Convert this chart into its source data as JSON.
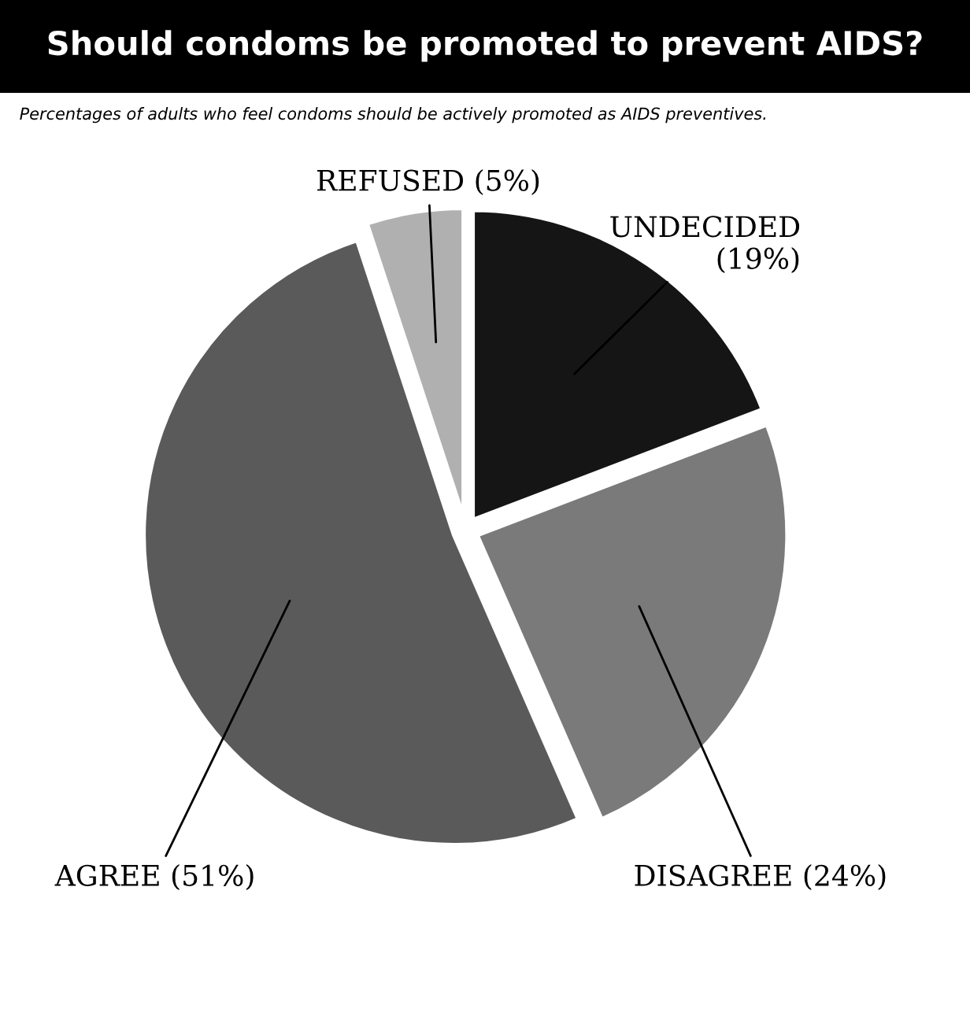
{
  "chart_data": {
    "type": "pie",
    "title": "Should condoms be promoted to prevent AIDS?",
    "categories": [
      "UNDECIDED",
      "DISAGREE",
      "AGREE",
      "REFUSED"
    ],
    "values": [
      19,
      24,
      51,
      5
    ],
    "value_labels": [
      "(19%)",
      "(24%)",
      "(51%)",
      "(5%)"
    ],
    "colors": [
      "#151515",
      "#7a7a7a",
      "#5a5a5a",
      "#b0b0b0"
    ],
    "annotations": [
      "Percentages of adults who feel condoms should be actively promoted as AIDS preventives."
    ]
  }
}
